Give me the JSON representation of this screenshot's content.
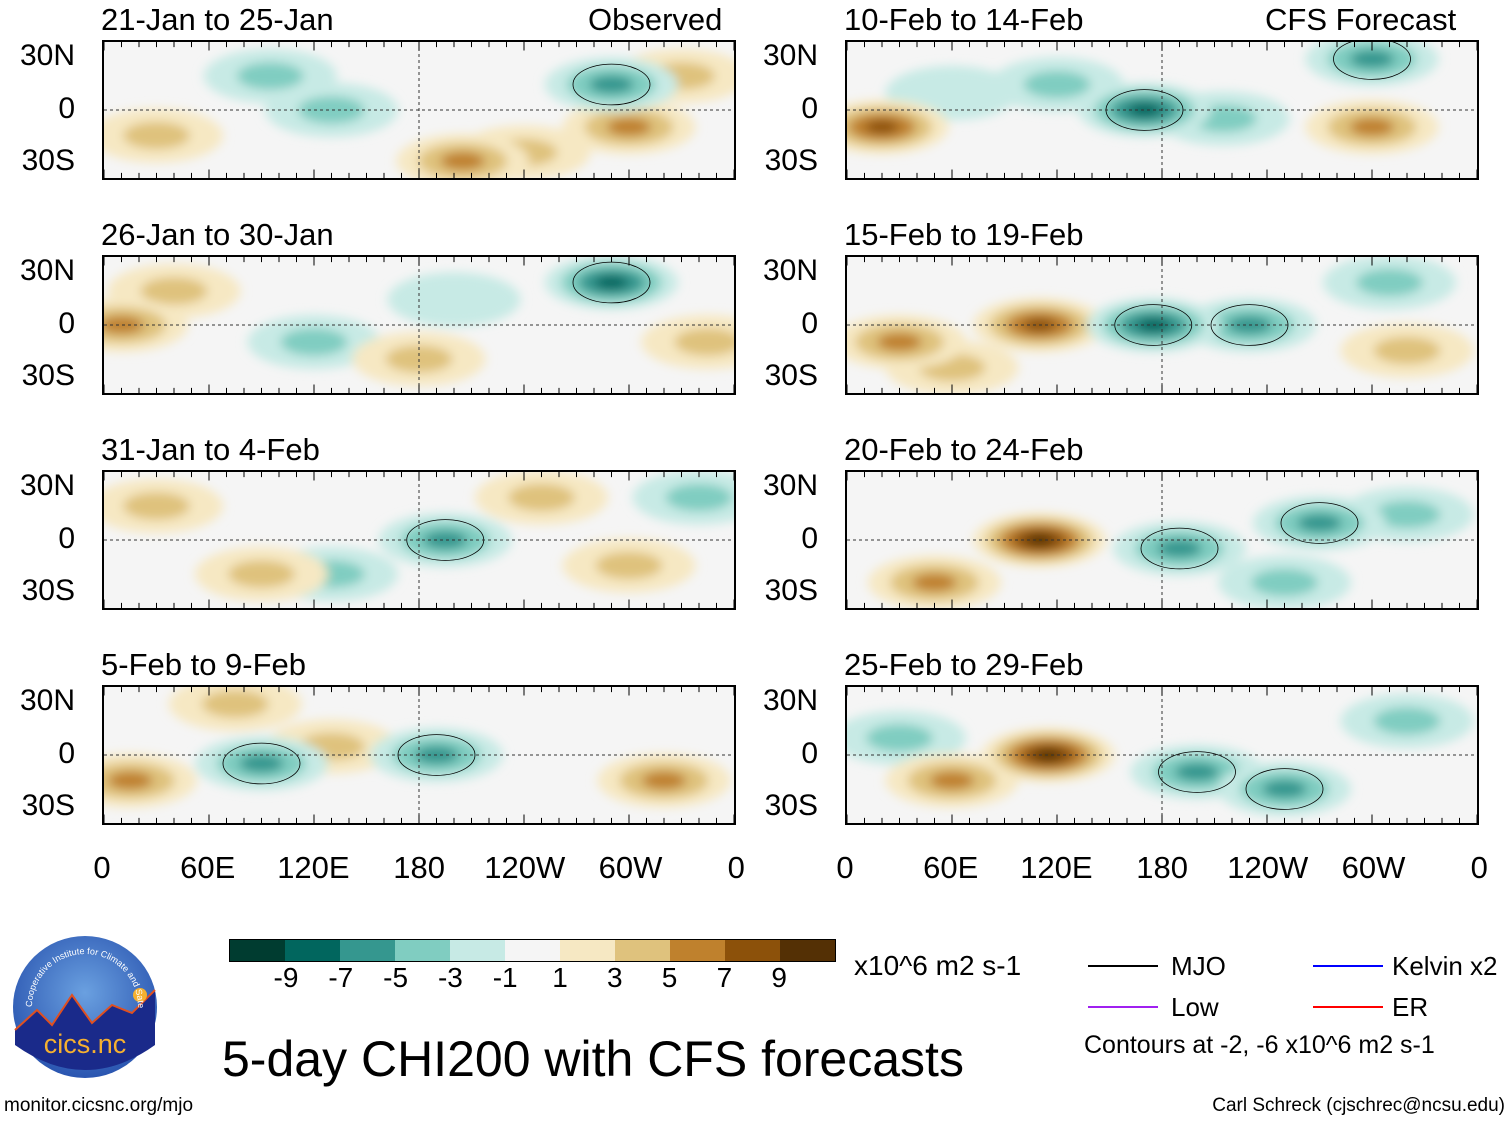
{
  "labels": {
    "observed": "Observed",
    "forecast": "CFS Forecast"
  },
  "y_ticks": [
    "30N",
    "0",
    "30S"
  ],
  "x_ticks": [
    "0",
    "60E",
    "120E",
    "180",
    "120W",
    "60W",
    "0"
  ],
  "colorbar": {
    "colors": [
      "#003c30",
      "#01665e",
      "#35978f",
      "#80cdc1",
      "#c7eae5",
      "#f5f5f5",
      "#f6e8c3",
      "#dfc27d",
      "#bf812d",
      "#8c510a",
      "#543005"
    ],
    "labels": [
      "-9",
      "-7",
      "-5",
      "-3",
      "-1",
      "1",
      "3",
      "5",
      "7",
      "9"
    ],
    "units": "x10^6 m2 s-1"
  },
  "legend": {
    "items": [
      {
        "label": "MJO",
        "color": "#000000"
      },
      {
        "label": "Kelvin x2",
        "color": "#0000ff"
      },
      {
        "label": "Low",
        "color": "#a020f0"
      },
      {
        "label": "ER",
        "color": "#ff0000"
      }
    ],
    "note": "Contours at -2, -6 x10^6 m2 s-1"
  },
  "title": "5-day CHI200 with CFS forecasts",
  "footer": {
    "left": "monitor.cicsnc.org/mjo",
    "right": "Carl Schreck (cjschrec@ncsu.edu)"
  },
  "logo": {
    "text": "cics.nc",
    "ring": "Cooperative Institute for Climate and Satellites"
  },
  "chart_data": {
    "type": "heatmap",
    "variable": "CHI200 anomaly",
    "units": "x10^6 m2 s-1",
    "lon_range": [
      0,
      360
    ],
    "lat_range": [
      -40,
      40
    ],
    "panels": [
      {
        "title": "21-Jan to 25-Jan",
        "source": "Observed",
        "features": [
          [
            300,
            -10,
            5
          ],
          [
            240,
            -25,
            3
          ],
          [
            205,
            -30,
            5
          ],
          [
            290,
            15,
            -5
          ],
          [
            130,
            0,
            -3
          ],
          [
            95,
            20,
            -3
          ],
          [
            30,
            -15,
            3
          ],
          [
            330,
            20,
            3
          ]
        ]
      },
      {
        "title": "26-Jan to 30-Jan",
        "source": "Observed",
        "features": [
          [
            290,
            25,
            -7
          ],
          [
            10,
            0,
            5
          ],
          [
            40,
            20,
            3
          ],
          [
            120,
            -10,
            -3
          ],
          [
            180,
            -20,
            3
          ],
          [
            345,
            -10,
            3
          ],
          [
            200,
            15,
            -1
          ]
        ]
      },
      {
        "title": "31-Jan to 4-Feb",
        "source": "Observed",
        "features": [
          [
            195,
            0,
            -5
          ],
          [
            130,
            -20,
            -3
          ],
          [
            30,
            20,
            3
          ],
          [
            300,
            -15,
            3
          ],
          [
            90,
            -20,
            3
          ],
          [
            250,
            25,
            3
          ],
          [
            340,
            25,
            -3
          ]
        ]
      },
      {
        "title": "5-Feb to 9-Feb",
        "source": "Observed",
        "features": [
          [
            90,
            -5,
            -5
          ],
          [
            190,
            0,
            -5
          ],
          [
            15,
            -15,
            5
          ],
          [
            320,
            -15,
            5
          ],
          [
            130,
            5,
            3
          ],
          [
            75,
            30,
            3
          ]
        ]
      },
      {
        "title": "10-Feb to 14-Feb",
        "source": "CFS Forecast",
        "features": [
          [
            20,
            -10,
            7
          ],
          [
            170,
            0,
            -7
          ],
          [
            120,
            15,
            -3
          ],
          [
            300,
            30,
            -5
          ],
          [
            300,
            -10,
            5
          ],
          [
            215,
            -5,
            -3
          ],
          [
            60,
            10,
            -1
          ]
        ]
      },
      {
        "title": "15-Feb to 19-Feb",
        "source": "CFS Forecast",
        "features": [
          [
            110,
            0,
            7
          ],
          [
            30,
            -10,
            5
          ],
          [
            175,
            0,
            -7
          ],
          [
            230,
            0,
            -5
          ],
          [
            310,
            25,
            -3
          ],
          [
            320,
            -15,
            3
          ],
          [
            60,
            -25,
            3
          ]
        ]
      },
      {
        "title": "20-Feb to 24-Feb",
        "source": "CFS Forecast",
        "features": [
          [
            110,
            0,
            9
          ],
          [
            50,
            -25,
            5
          ],
          [
            190,
            -5,
            -5
          ],
          [
            270,
            10,
            -5
          ],
          [
            320,
            15,
            -3
          ],
          [
            250,
            -25,
            -3
          ]
        ]
      },
      {
        "title": "25-Feb to 29-Feb",
        "source": "CFS Forecast",
        "features": [
          [
            115,
            0,
            9
          ],
          [
            60,
            -15,
            5
          ],
          [
            200,
            -10,
            -5
          ],
          [
            250,
            -20,
            -5
          ],
          [
            30,
            10,
            -3
          ],
          [
            320,
            20,
            -3
          ]
        ]
      }
    ]
  }
}
